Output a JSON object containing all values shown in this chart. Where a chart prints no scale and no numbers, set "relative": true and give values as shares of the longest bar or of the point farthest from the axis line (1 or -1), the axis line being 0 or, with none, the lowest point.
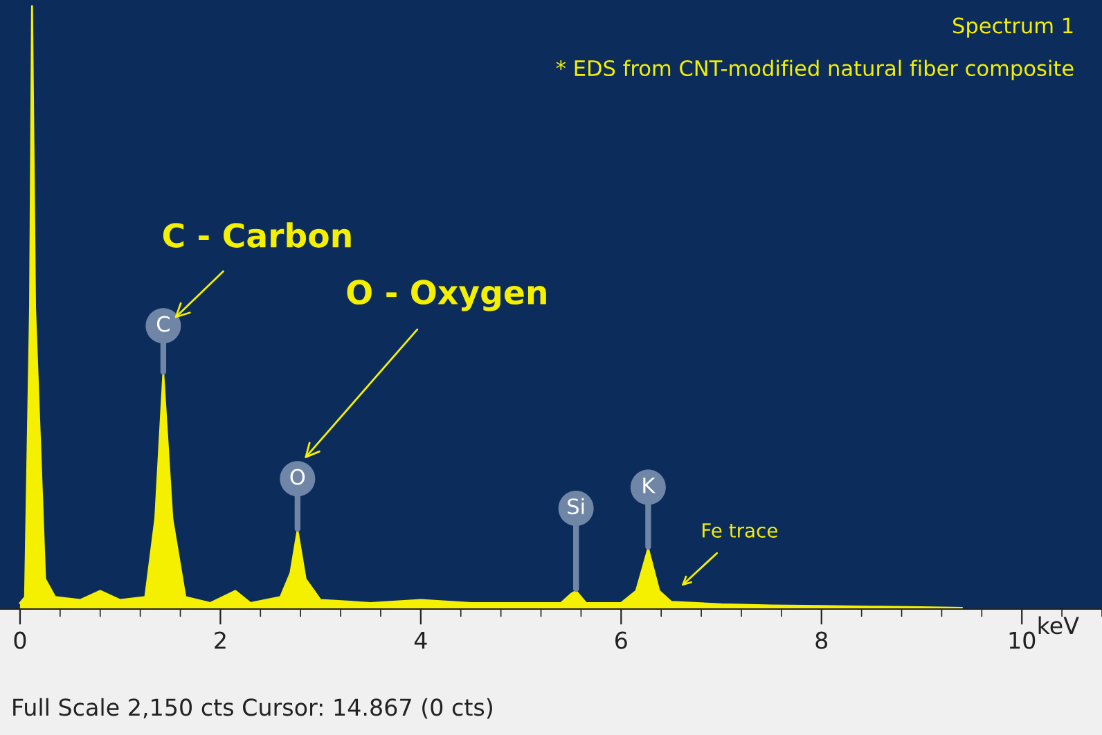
{
  "chart_data": {
    "type": "area",
    "relative": true,
    "xlabel": "keV",
    "xlim": [
      -0.2,
      10.8
    ],
    "xticks": [
      0,
      2,
      4,
      6,
      8,
      10
    ],
    "x": [
      0.0,
      0.05,
      0.1,
      0.12,
      0.15,
      0.25,
      0.35,
      0.6,
      0.8,
      1.0,
      1.25,
      1.35,
      1.43,
      1.52,
      1.65,
      1.9,
      2.15,
      2.3,
      2.6,
      2.7,
      2.77,
      2.85,
      3.0,
      3.5,
      4.0,
      4.5,
      5.0,
      5.4,
      5.5,
      5.55,
      5.65,
      6.0,
      6.15,
      6.27,
      6.38,
      6.5,
      7.0,
      7.5,
      8.0,
      8.5,
      9.0,
      9.4
    ],
    "series": [
      {
        "color": "#f5f000",
        "values": [
          0.01,
          0.02,
          0.5,
          1.0,
          0.5,
          0.05,
          0.02,
          0.015,
          0.03,
          0.015,
          0.02,
          0.15,
          0.39,
          0.15,
          0.02,
          0.01,
          0.03,
          0.01,
          0.02,
          0.06,
          0.13,
          0.05,
          0.015,
          0.01,
          0.015,
          0.01,
          0.01,
          0.01,
          0.025,
          0.03,
          0.01,
          0.01,
          0.03,
          0.1,
          0.03,
          0.012,
          0.008,
          0.006,
          0.005,
          0.004,
          0.003,
          0.002
        ]
      }
    ],
    "annotations": [
      {
        "text": "C",
        "x": 1.43,
        "y": 0.39
      },
      {
        "text": "O",
        "x": 2.77,
        "y": 0.13
      },
      {
        "text": "Si",
        "x": 5.55,
        "y": 0.03
      },
      {
        "text": "K",
        "x": 6.27,
        "y": 0.1
      },
      "C - Carbon",
      "O - Oxygen",
      "Fe trace",
      "Spectrum 1",
      "* EDS from CNT-modified natural fiber composite",
      "Full Scale 2,150 cts Cursor: 14.867 (0 cts)"
    ],
    "legend": false,
    "grid": false
  }
}
